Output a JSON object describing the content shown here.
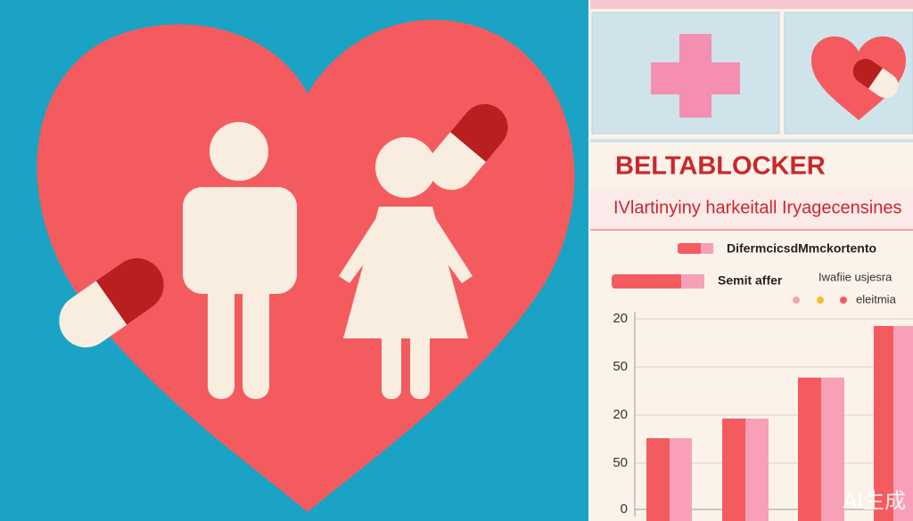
{
  "panel": {
    "title": "BELTABLOCKER",
    "subtitle": "IVlartinyiny harkeitall Iryagecensines",
    "legend": [
      "DifermcicsdMmckortento",
      "Semit affer",
      "Iwafiie usjesra",
      "eleitmia"
    ],
    "axis_labels": [
      "20",
      "50",
      "20",
      "50",
      "0"
    ]
  },
  "watermark": "AI生成"
}
